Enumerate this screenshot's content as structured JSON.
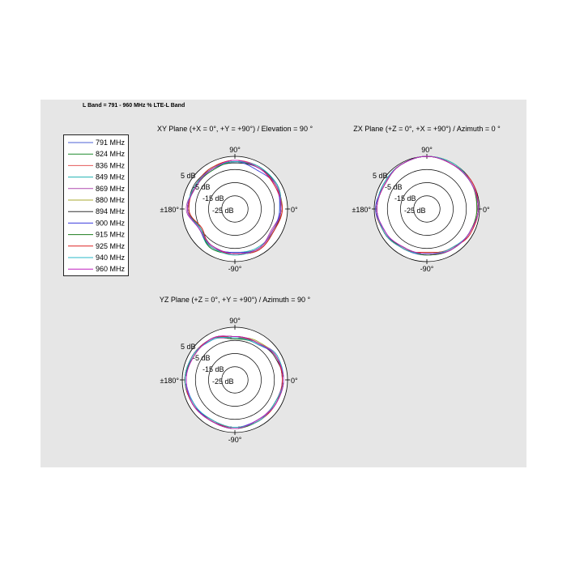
{
  "page": {
    "title": "L Band = 791 - 960 MHz % LTE-L Band"
  },
  "chart_data": {
    "type": "polar",
    "radial_axis": {
      "unit": "dB",
      "ring_labels": [
        "5 dB",
        "-5 dB",
        "-15 dB",
        "-25 dB"
      ],
      "ring_values": [
        5,
        -5,
        -15,
        -25
      ],
      "rlim": [
        -35,
        5
      ]
    },
    "angle_labels": {
      "top": "90°",
      "right": "0°",
      "bottom": "-90°",
      "left": "±180°"
    },
    "legend": {
      "entries": [
        "791 MHz",
        "824 MHz",
        "836 MHz",
        "849 MHz",
        "869 MHz",
        "880 MHz",
        "894 MHz",
        "900 MHz",
        "915 MHz",
        "925 MHz",
        "940 MHz",
        "960 MHz"
      ],
      "colors": [
        "#4c62d6",
        "#1f8a2e",
        "#e45a5a",
        "#20b2b2",
        "#b04ab0",
        "#a8a830",
        "#333333",
        "#3b3bdd",
        "#1e7d1e",
        "#dd2222",
        "#2ab8c8",
        "#c020c0"
      ]
    },
    "plots": [
      {
        "title": "XY Plane (+X = 0°, +Y = +90°) / Elevation = 90 °",
        "angles_deg": [
          0,
          30,
          60,
          90,
          120,
          150,
          180,
          210,
          240,
          270,
          300,
          330
        ],
        "series": [
          {
            "name": "791 MHz",
            "values": [
              0,
              1,
              2,
              1,
              -1,
              0,
              1,
              -6,
              -1,
              -1,
              0,
              -2
            ]
          },
          {
            "name": "824 MHz",
            "values": [
              0,
              2,
              1,
              1,
              1,
              -1,
              1,
              -4,
              -1,
              -2,
              0,
              -2
            ]
          },
          {
            "name": "836 MHz",
            "values": [
              1,
              1,
              2,
              2,
              0,
              0,
              0,
              -5,
              -2,
              -1,
              1,
              -1
            ]
          },
          {
            "name": "849 MHz",
            "values": [
              -1,
              2,
              1,
              0,
              1,
              0,
              1,
              -4,
              0,
              -2,
              -1,
              -1
            ]
          },
          {
            "name": "869 MHz",
            "values": [
              0,
              0,
              2,
              1,
              0,
              -1,
              2,
              -5,
              -1,
              -1,
              0,
              -3
            ]
          },
          {
            "name": "880 MHz",
            "values": [
              1,
              1,
              1,
              2,
              1,
              0,
              1,
              -6,
              -1,
              0,
              0,
              -2
            ]
          },
          {
            "name": "894 MHz",
            "values": [
              0,
              2,
              1,
              0,
              0,
              1,
              0,
              -5,
              -2,
              -1,
              1,
              -1
            ]
          },
          {
            "name": "900 MHz",
            "values": [
              -1,
              1,
              -1,
              1,
              0,
              0,
              1,
              -4,
              -1,
              -2,
              0,
              -2
            ]
          },
          {
            "name": "915 MHz",
            "values": [
              0,
              1,
              2,
              1,
              -1,
              -1,
              1,
              -5,
              0,
              -1,
              0,
              -2
            ]
          },
          {
            "name": "925 MHz",
            "values": [
              1,
              0,
              1,
              2,
              1,
              0,
              0,
              -6,
              -1,
              -1,
              1,
              -1
            ]
          },
          {
            "name": "940 MHz",
            "values": [
              0,
              2,
              2,
              1,
              0,
              0,
              1,
              -5,
              -1,
              0,
              0,
              -2
            ]
          },
          {
            "name": "960 MHz",
            "values": [
              0,
              1,
              1,
              2,
              0,
              -1,
              1,
              -4,
              -2,
              -1,
              0,
              -2
            ]
          }
        ]
      },
      {
        "title": "ZX Plane (+Z = 0°, +X = +90°) / Azimuth = 0 °",
        "angles_deg": [
          0,
          30,
          60,
          90,
          120,
          150,
          180,
          210,
          240,
          270,
          300,
          330
        ],
        "series": [
          {
            "name": "791 MHz",
            "values": [
              4,
              4,
              4,
              5,
              4,
              2,
              3,
              2,
              0,
              0,
              1,
              2
            ]
          },
          {
            "name": "824 MHz",
            "values": [
              4,
              4,
              5,
              5,
              4,
              2,
              3,
              2,
              -1,
              -1,
              0,
              2
            ]
          },
          {
            "name": "836 MHz",
            "values": [
              3,
              4,
              4,
              5,
              4,
              2,
              4,
              2,
              0,
              -2,
              0,
              2
            ]
          },
          {
            "name": "849 MHz",
            "values": [
              4,
              4,
              4,
              5,
              4,
              3,
              3,
              1,
              0,
              -1,
              1,
              2
            ]
          },
          {
            "name": "869 MHz",
            "values": [
              4,
              5,
              4,
              5,
              4,
              2,
              3,
              2,
              -1,
              0,
              0,
              3
            ]
          },
          {
            "name": "880 MHz",
            "values": [
              3,
              4,
              5,
              5,
              4,
              2,
              3,
              2,
              0,
              -2,
              0,
              2
            ]
          },
          {
            "name": "894 MHz",
            "values": [
              4,
              4,
              4,
              5,
              4,
              3,
              3,
              2,
              0,
              -1,
              1,
              2
            ]
          },
          {
            "name": "900 MHz",
            "values": [
              4,
              4,
              4,
              5,
              4,
              2,
              4,
              1,
              0,
              -1,
              0,
              2
            ]
          },
          {
            "name": "915 MHz",
            "values": [
              3,
              4,
              4,
              5,
              4,
              2,
              3,
              2,
              -1,
              0,
              1,
              2
            ]
          },
          {
            "name": "925 MHz",
            "values": [
              4,
              5,
              4,
              5,
              4,
              2,
              3,
              2,
              0,
              -2,
              0,
              3
            ]
          },
          {
            "name": "940 MHz",
            "values": [
              4,
              4,
              5,
              5,
              4,
              3,
              3,
              2,
              0,
              -1,
              0,
              2
            ]
          },
          {
            "name": "960 MHz",
            "values": [
              4,
              4,
              4,
              5,
              4,
              2,
              3,
              1,
              -1,
              -1,
              1,
              2
            ]
          }
        ]
      },
      {
        "title": "YZ Plane (+Z = 0°, +Y = +90°) / Azimuth = 90 °",
        "angles_deg": [
          0,
          30,
          60,
          90,
          120,
          150,
          180,
          210,
          240,
          270,
          300,
          330
        ],
        "series": [
          {
            "name": "791 MHz",
            "values": [
              2,
              1,
              -2,
              -3,
              1,
              2,
              3,
              2,
              1,
              1,
              1,
              0
            ]
          },
          {
            "name": "824 MHz",
            "values": [
              1,
              1,
              -3,
              -4,
              0,
              2,
              3,
              1,
              1,
              2,
              0,
              1
            ]
          },
          {
            "name": "836 MHz",
            "values": [
              2,
              0,
              -2,
              -2,
              1,
              1,
              3,
              2,
              0,
              1,
              1,
              0
            ]
          },
          {
            "name": "849 MHz",
            "values": [
              2,
              1,
              -3,
              -3,
              1,
              2,
              2,
              2,
              1,
              1,
              1,
              1
            ]
          },
          {
            "name": "869 MHz",
            "values": [
              1,
              2,
              -2,
              -4,
              0,
              2,
              3,
              1,
              1,
              2,
              0,
              0
            ]
          },
          {
            "name": "880 MHz",
            "values": [
              2,
              1,
              -1,
              -3,
              1,
              1,
              3,
              2,
              1,
              1,
              1,
              1
            ]
          },
          {
            "name": "894 MHz",
            "values": [
              2,
              0,
              -2,
              -2,
              1,
              2,
              3,
              2,
              0,
              1,
              1,
              0
            ]
          },
          {
            "name": "900 MHz",
            "values": [
              1,
              1,
              -3,
              -3,
              0,
              2,
              2,
              1,
              1,
              1,
              0,
              1
            ]
          },
          {
            "name": "915 MHz",
            "values": [
              2,
              1,
              -2,
              -4,
              1,
              1,
              3,
              2,
              1,
              2,
              1,
              0
            ]
          },
          {
            "name": "925 MHz",
            "values": [
              1,
              1,
              -2,
              -3,
              1,
              2,
              3,
              2,
              1,
              1,
              1,
              1
            ]
          },
          {
            "name": "940 MHz",
            "values": [
              2,
              2,
              -3,
              -3,
              0,
              2,
              3,
              1,
              0,
              1,
              1,
              0
            ]
          },
          {
            "name": "960 MHz",
            "values": [
              2,
              1,
              -2,
              -2,
              1,
              1,
              2,
              2,
              1,
              2,
              0,
              1
            ]
          }
        ]
      }
    ]
  }
}
